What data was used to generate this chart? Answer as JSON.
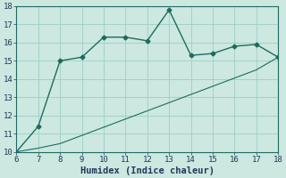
{
  "line1_x": [
    6,
    7,
    8,
    9,
    10,
    11,
    12,
    13,
    14,
    15,
    16,
    17,
    18
  ],
  "line1_y": [
    10.0,
    11.4,
    15.0,
    15.2,
    16.3,
    16.3,
    16.1,
    17.8,
    15.3,
    15.4,
    15.8,
    15.9,
    15.2
  ],
  "line2_x": [
    6,
    7,
    8,
    9,
    10,
    11,
    12,
    13,
    14,
    15,
    16,
    17,
    18
  ],
  "line2_y": [
    10.0,
    10.2,
    10.45,
    10.9,
    11.35,
    11.8,
    12.25,
    12.7,
    13.15,
    13.6,
    14.05,
    14.5,
    15.2
  ],
  "line_color": "#1e6b5e",
  "bg_color": "#cce8e0",
  "grid_color": "#9ecec4",
  "xlabel": "Humidex (Indice chaleur)",
  "xlim": [
    6,
    18
  ],
  "ylim": [
    10,
    18
  ],
  "xticks": [
    6,
    7,
    8,
    9,
    10,
    11,
    12,
    13,
    14,
    15,
    16,
    17,
    18
  ],
  "yticks": [
    10,
    11,
    12,
    13,
    14,
    15,
    16,
    17,
    18
  ],
  "marker": "D",
  "markersize": 2.5,
  "linewidth": 1.0,
  "line2_linewidth": 0.8,
  "tick_fontsize": 6.5,
  "xlabel_fontsize": 7.5
}
